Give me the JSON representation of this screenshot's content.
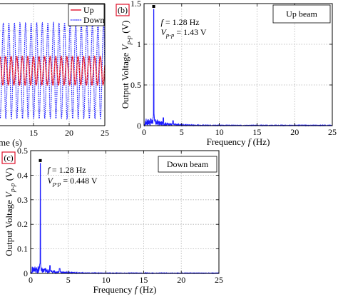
{
  "colors": {
    "spectrum_blue": "#1a1aff",
    "up_red": "#e0102a",
    "down_blue": "#1a1aff",
    "panel_label_border": "#e0102a",
    "grid_gray": "#b0b0b0",
    "peak_marker": "#000000"
  },
  "chart_data": [
    {
      "id": "a",
      "type": "line",
      "partially_visible": true,
      "xlabel": "Time (s)",
      "visible_xlabel_fragment": "me (s)",
      "x_ticks": [
        15,
        20,
        25
      ],
      "xlim": [
        10.3,
        25
      ],
      "grid": true,
      "legend": {
        "placement": "top-right",
        "entries": [
          "Up",
          "Down"
        ]
      },
      "series": [
        {
          "name": "Up",
          "color": "#e0102a",
          "style": "solid-dotted",
          "frequency_hz": 1.28,
          "mean_px_level": 0.5,
          "amplitude_rel": 0.23
        },
        {
          "name": "Down",
          "color": "#1a1aff",
          "style": "dotted",
          "frequency_hz": 1.28,
          "mean_px_level": 0.5,
          "amplitude_rel": 0.85
        }
      ]
    },
    {
      "id": "b",
      "panel_label": "(b)",
      "type": "line",
      "xlabel_parts": [
        "Frequency ",
        "f",
        " (Hz)"
      ],
      "ylabel_parts": [
        "Output Voltage ",
        "V",
        "p-p",
        " (V)"
      ],
      "xlim": [
        0,
        25
      ],
      "ylim": [
        0,
        1.5
      ],
      "x_ticks": [
        0,
        5,
        10,
        15,
        20,
        25
      ],
      "y_ticks": [
        0,
        0.5,
        1,
        1.5
      ],
      "y_tick_labels": [
        "0",
        "0.5",
        "1",
        "1.5"
      ],
      "grid": true,
      "legend_box": "Up beam",
      "annotation": {
        "f_parts": [
          "f",
          " = 1.28 Hz"
        ],
        "v_parts": [
          "V",
          "p-p",
          " = 1.43 V"
        ]
      },
      "peak": {
        "x": 1.28,
        "y": 1.43
      },
      "noise_floor": 0.06,
      "color": "#1a1aff"
    },
    {
      "id": "c",
      "panel_label": "(c)",
      "type": "line",
      "xlabel_parts": [
        "Frequency ",
        "f",
        " (Hz)"
      ],
      "ylabel_parts": [
        "Output Voltage ",
        "V",
        "p-p",
        " (V)"
      ],
      "xlim": [
        0,
        25
      ],
      "ylim": [
        0,
        0.5
      ],
      "x_ticks": [
        0,
        5,
        10,
        15,
        20,
        25
      ],
      "y_ticks": [
        0,
        0.1,
        0.2,
        0.3,
        0.4,
        0.5
      ],
      "y_tick_labels": [
        "0",
        "0.1",
        "0.2",
        "0.3",
        "0.4",
        "0.5"
      ],
      "grid": true,
      "legend_box": "Down beam",
      "annotation": {
        "f_parts": [
          "f",
          " = 1.28 Hz"
        ],
        "v_parts": [
          "V",
          "p-p",
          " = 0.448 V"
        ]
      },
      "peak": {
        "x": 1.28,
        "y": 0.448
      },
      "noise_floor": 0.02,
      "color": "#1a1aff"
    }
  ]
}
